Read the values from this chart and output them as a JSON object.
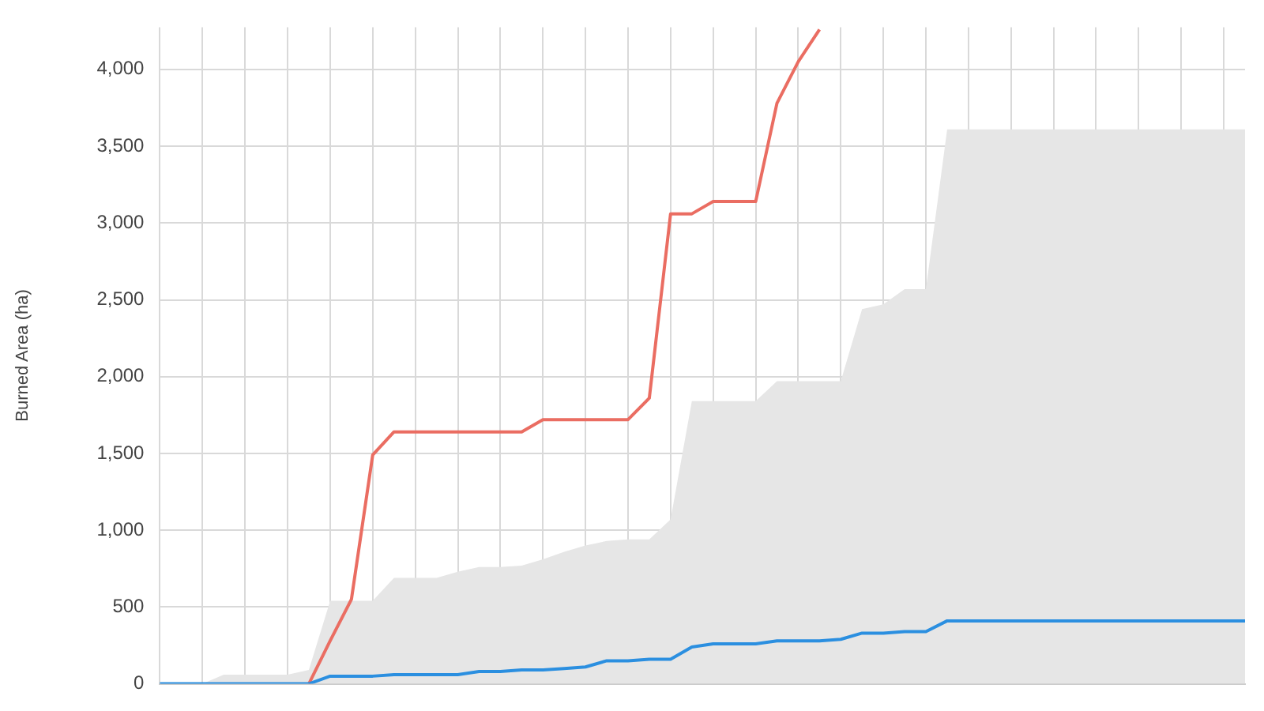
{
  "chart_data": {
    "type": "line",
    "ylabel": "Burned Area (ha)",
    "categories": [
      null,
      null,
      null,
      null,
      null,
      null,
      null,
      null,
      null,
      null,
      null,
      null,
      null,
      null,
      null,
      null,
      null,
      null,
      null,
      null,
      null,
      null,
      null,
      null,
      null,
      null,
      null,
      null,
      null,
      null,
      null,
      null,
      null,
      null,
      null,
      null,
      null,
      null,
      null,
      null,
      null,
      null,
      null,
      null,
      null,
      null,
      null,
      null,
      null,
      null,
      null,
      null
    ],
    "series": [
      {
        "type": "area",
        "color": "#e6e6e6",
        "values": [
          0,
          0,
          0,
          60,
          60,
          60,
          60,
          90,
          540,
          540,
          540,
          690,
          690,
          690,
          730,
          760,
          760,
          770,
          810,
          860,
          900,
          930,
          940,
          940,
          1070,
          1840,
          1840,
          1840,
          1840,
          1970,
          1970,
          1970,
          1970,
          2440,
          2470,
          2570,
          2570,
          3610,
          3610,
          3610,
          3610,
          3610,
          3610,
          3610,
          3610,
          3610,
          3610,
          3610,
          3610,
          3610,
          3610,
          3610
        ]
      },
      {
        "type": "line",
        "color": "#ea6d62",
        "values": [
          null,
          null,
          null,
          null,
          null,
          null,
          null,
          0,
          280,
          550,
          1490,
          1640,
          1640,
          1640,
          1640,
          1640,
          1640,
          1640,
          1720,
          1720,
          1720,
          1720,
          1720,
          1860,
          3060,
          3060,
          3140,
          3140,
          3140,
          3780,
          4050,
          4260,
          null,
          null,
          null,
          null,
          null,
          null,
          null,
          null,
          null,
          null,
          null,
          null,
          null,
          null,
          null,
          null,
          null,
          null,
          null,
          null
        ]
      },
      {
        "type": "line",
        "color": "#2b8fe0",
        "values": [
          0,
          0,
          0,
          0,
          0,
          0,
          0,
          0,
          50,
          50,
          50,
          60,
          60,
          60,
          60,
          80,
          80,
          90,
          90,
          100,
          110,
          150,
          150,
          160,
          160,
          240,
          260,
          260,
          260,
          280,
          280,
          280,
          290,
          330,
          330,
          340,
          340,
          410,
          410,
          410,
          410,
          410,
          410,
          410,
          410,
          410,
          410,
          410,
          410,
          410,
          410,
          410
        ]
      }
    ],
    "ylim": [
      0,
      4275
    ],
    "yticks": [
      0,
      500,
      {
        "value": 1000,
        "label": "1,000"
      },
      {
        "value": 1500,
        "label": "1,500"
      },
      {
        "value": 2000,
        "label": "2,000"
      },
      {
        "value": 2500,
        "label": "2,500"
      },
      {
        "value": 3000,
        "label": "3,000"
      },
      {
        "value": 3500,
        "label": "3,500"
      },
      {
        "value": 4000,
        "label": "4,000"
      }
    ],
    "grid": true,
    "tick_labels": "y",
    "legend": false,
    "marker": "none",
    "line_style": "solid"
  }
}
